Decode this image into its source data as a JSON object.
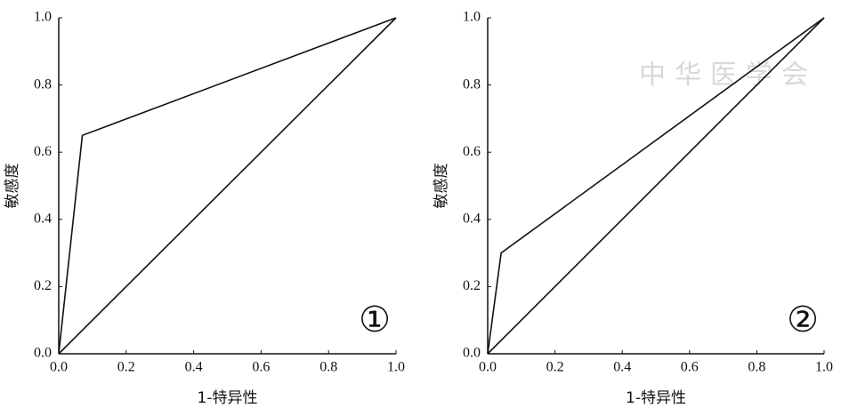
{
  "chart_data": [
    {
      "type": "line",
      "xlabel": "1-特异性",
      "ylabel": "敏感度",
      "annotation": "①",
      "xlim": [
        0,
        1
      ],
      "ylim": [
        0,
        1
      ],
      "xticks": [
        {
          "value": 0,
          "label": "0.0"
        },
        0.2,
        0.4,
        0.6,
        0.8,
        {
          "value": 1,
          "label": "1.0"
        }
      ],
      "yticks": [
        {
          "value": 0,
          "label": "0.0"
        },
        0.2,
        0.4,
        0.6,
        0.8,
        {
          "value": 1,
          "label": "1.0"
        }
      ],
      "grid": false,
      "series": [
        {
          "color": "#111111",
          "x": [
            0,
            0.07,
            1
          ],
          "values": [
            0,
            0.65,
            1
          ]
        },
        {
          "color": "#111111",
          "x": [
            0,
            1
          ],
          "values": [
            0,
            1
          ]
        }
      ]
    },
    {
      "type": "line",
      "xlabel": "1-特异性",
      "ylabel": "敏感度",
      "annotation": "②",
      "watermark": "中华医学会",
      "xlim": [
        0,
        1
      ],
      "ylim": [
        0,
        1
      ],
      "xticks": [
        {
          "value": 0,
          "label": "0.0"
        },
        0.2,
        0.4,
        0.6,
        0.8,
        {
          "value": 1,
          "label": "1.0"
        }
      ],
      "yticks": [
        {
          "value": 0,
          "label": "0.0"
        },
        0.2,
        0.4,
        0.6,
        0.8,
        {
          "value": 1,
          "label": "1.0"
        }
      ],
      "grid": false,
      "series": [
        {
          "color": "#111111",
          "x": [
            0,
            0.04,
            1
          ],
          "values": [
            0,
            0.3,
            1
          ]
        },
        {
          "color": "#111111",
          "x": [
            0,
            1
          ],
          "values": [
            0,
            1
          ]
        }
      ]
    }
  ]
}
